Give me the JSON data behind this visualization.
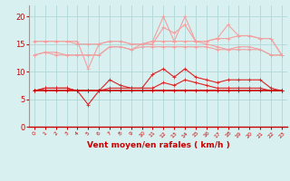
{
  "x": [
    0,
    1,
    2,
    3,
    4,
    5,
    6,
    7,
    8,
    9,
    10,
    11,
    12,
    13,
    14,
    15,
    16,
    17,
    18,
    19,
    20,
    21,
    22,
    23
  ],
  "series": [
    {
      "name": "rafales_high",
      "color": "#f4a0a0",
      "linewidth": 0.8,
      "marker": "+",
      "markersize": 3,
      "values": [
        15.5,
        15.5,
        15.5,
        15.5,
        15.5,
        10.5,
        15.0,
        15.5,
        15.5,
        15.0,
        15.0,
        15.5,
        20.0,
        15.5,
        20.0,
        15.5,
        15.5,
        16.0,
        18.5,
        16.5,
        16.5,
        16.0,
        16.0,
        13.0
      ]
    },
    {
      "name": "rafales_mid_high",
      "color": "#f4a0a0",
      "linewidth": 0.8,
      "marker": "+",
      "markersize": 3,
      "values": [
        15.5,
        15.5,
        15.5,
        15.5,
        15.0,
        15.0,
        15.0,
        15.5,
        15.5,
        15.0,
        15.0,
        15.5,
        15.5,
        15.5,
        15.5,
        15.5,
        15.5,
        16.0,
        16.0,
        16.5,
        16.5,
        16.0,
        16.0,
        13.0
      ]
    },
    {
      "name": "rafales_mid",
      "color": "#f0a0a0",
      "linewidth": 0.8,
      "marker": "+",
      "markersize": 3,
      "values": [
        13.0,
        13.5,
        13.5,
        13.0,
        13.0,
        13.0,
        13.0,
        14.5,
        14.5,
        14.0,
        15.0,
        15.0,
        18.0,
        17.0,
        18.5,
        15.5,
        15.0,
        14.5,
        14.0,
        14.5,
        14.5,
        14.0,
        13.0,
        13.0
      ]
    },
    {
      "name": "rafales_low",
      "color": "#f0a0a0",
      "linewidth": 0.8,
      "marker": "+",
      "markersize": 3,
      "values": [
        13.0,
        13.5,
        13.0,
        13.0,
        13.0,
        13.0,
        13.0,
        14.5,
        14.5,
        14.0,
        14.5,
        14.5,
        14.5,
        14.5,
        14.5,
        14.5,
        14.5,
        14.0,
        14.0,
        14.0,
        14.0,
        14.0,
        13.0,
        13.0
      ]
    },
    {
      "name": "vent_high",
      "color": "#dd2222",
      "linewidth": 0.8,
      "marker": "+",
      "markersize": 3,
      "values": [
        6.5,
        7.0,
        7.0,
        7.0,
        6.5,
        4.0,
        6.5,
        8.5,
        7.5,
        7.0,
        7.0,
        9.5,
        10.5,
        9.0,
        10.5,
        9.0,
        8.5,
        8.0,
        8.5,
        8.5,
        8.5,
        8.5,
        7.0,
        6.5
      ]
    },
    {
      "name": "vent_mid",
      "color": "#dd2222",
      "linewidth": 0.8,
      "marker": "+",
      "markersize": 3,
      "values": [
        6.5,
        7.0,
        7.0,
        7.0,
        6.5,
        6.5,
        6.5,
        7.0,
        7.0,
        7.0,
        7.0,
        7.0,
        8.0,
        7.5,
        8.5,
        8.0,
        7.5,
        7.0,
        7.0,
        7.0,
        7.0,
        7.0,
        6.5,
        6.5
      ]
    },
    {
      "name": "vent_low",
      "color": "#cc0000",
      "linewidth": 1.2,
      "marker": "+",
      "markersize": 3,
      "values": [
        6.5,
        6.5,
        6.5,
        6.5,
        6.5,
        6.5,
        6.5,
        6.5,
        6.5,
        6.5,
        6.5,
        6.5,
        6.5,
        6.5,
        6.5,
        6.5,
        6.5,
        6.5,
        6.5,
        6.5,
        6.5,
        6.5,
        6.5,
        6.5
      ]
    }
  ],
  "xlabel": "Vent moyen/en rafales ( km/h )",
  "xlim": [
    -0.5,
    23.5
  ],
  "ylim": [
    0,
    22
  ],
  "yticks": [
    0,
    5,
    10,
    15,
    20
  ],
  "xticks": [
    0,
    1,
    2,
    3,
    4,
    5,
    6,
    7,
    8,
    9,
    10,
    11,
    12,
    13,
    14,
    15,
    16,
    17,
    18,
    19,
    20,
    21,
    22,
    23
  ],
  "bg_color": "#d8f0f0",
  "grid_color": "#b0d8d8",
  "tick_color": "#cc0000",
  "label_color": "#cc0000",
  "xlabel_fontsize": 6.5,
  "ytick_fontsize": 6,
  "xtick_fontsize": 4.5
}
